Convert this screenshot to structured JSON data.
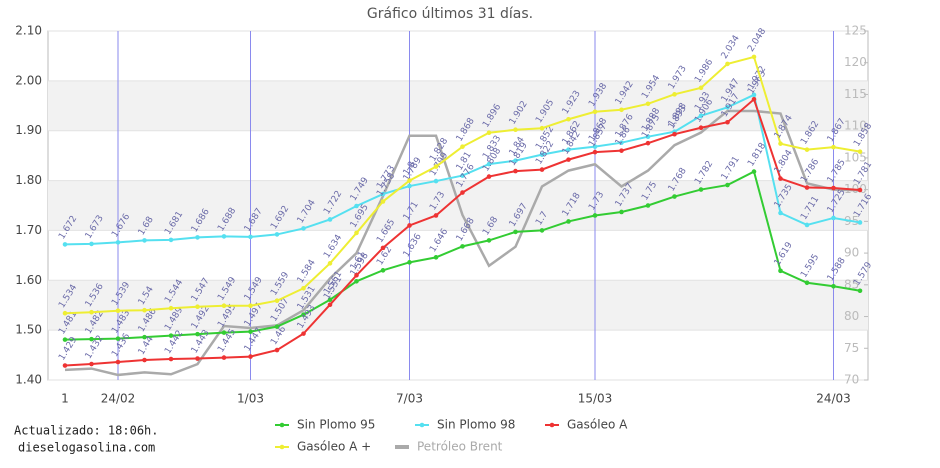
{
  "chart_data": {
    "type": "line",
    "title": "Gráfico últimos 31 días.",
    "footnote": [
      "Actualizado: 18:06h.",
      "dieselogasolina.com"
    ],
    "categories": [
      "1",
      null,
      "24/02",
      null,
      null,
      null,
      null,
      "1/03",
      null,
      null,
      null,
      null,
      null,
      "7/03",
      null,
      null,
      null,
      null,
      null,
      null,
      "15/03",
      null,
      null,
      null,
      null,
      null,
      null,
      null,
      null,
      "24/03",
      null
    ],
    "ylim": [
      1.4,
      2.1
    ],
    "yticks": [
      {
        "value": 1.4,
        "label": "1.40"
      },
      {
        "value": 1.5,
        "label": "1.50"
      },
      {
        "value": 1.6,
        "label": "1.60"
      },
      {
        "value": 1.7,
        "label": "1.70"
      },
      {
        "value": 1.8,
        "label": "1.80"
      },
      {
        "value": 1.9,
        "label": "1.90"
      },
      {
        "value": 2.0,
        "label": "2.00"
      },
      {
        "value": 2.1,
        "label": "2.10"
      }
    ],
    "y2lim": [
      70,
      125
    ],
    "y2ticks": [
      70,
      75,
      80,
      85,
      90,
      95,
      100,
      105,
      110,
      115,
      120,
      125
    ],
    "grid": true,
    "series": [
      {
        "name": "Sin Plomo 95",
        "color": "#33cc33",
        "values": [
          1.481,
          1.482,
          1.483,
          1.486,
          1.489,
          1.492,
          1.495,
          1.497,
          1.507,
          1.531,
          1.561,
          1.598,
          1.62,
          1.636,
          1.646,
          1.668,
          1.68,
          1.697,
          1.7,
          1.718,
          1.73,
          1.737,
          1.75,
          1.768,
          1.782,
          1.791,
          1.818,
          1.619,
          1.595,
          1.588,
          1.579
        ]
      },
      {
        "name": "Sin Plomo 98",
        "color": "#55e0f0",
        "values": [
          1.672,
          1.673,
          1.676,
          1.68,
          1.681,
          1.686,
          1.688,
          1.687,
          1.692,
          1.704,
          1.722,
          1.749,
          1.773,
          1.789,
          1.799,
          1.81,
          1.833,
          1.84,
          1.852,
          1.862,
          1.868,
          1.876,
          1.888,
          1.898,
          1.93,
          1.947,
          1.972,
          1.735,
          1.711,
          1.725,
          1.716
        ]
      },
      {
        "name": "Gasóleo A",
        "color": "#ee3333",
        "values": [
          1.429,
          1.432,
          1.436,
          1.44,
          1.442,
          1.443,
          1.445,
          1.447,
          1.46,
          1.493,
          1.551,
          1.61,
          1.665,
          1.71,
          1.73,
          1.776,
          1.808,
          1.819,
          1.822,
          1.842,
          1.857,
          1.86,
          1.875,
          1.893,
          1.906,
          1.917,
          1.963,
          1.804,
          1.786,
          1.785,
          1.781
        ]
      },
      {
        "name": "Gasóleo A +",
        "color": "#eeee33",
        "values": [
          1.534,
          1.536,
          1.539,
          1.54,
          1.544,
          1.547,
          1.549,
          1.549,
          1.559,
          1.584,
          1.634,
          1.695,
          1.758,
          1.8,
          1.828,
          1.868,
          1.896,
          1.902,
          1.905,
          1.923,
          1.938,
          1.942,
          1.954,
          1.973,
          1.986,
          2.034,
          2.048,
          1.874,
          1.862,
          1.867,
          1.858
        ]
      },
      {
        "name": "Petróleo Brent",
        "color": "#aaaaaa",
        "axis": "y2",
        "values": [
          71.6,
          71.8,
          70.8,
          71.2,
          70.9,
          72.5,
          78.5,
          78.2,
          78.6,
          81,
          86,
          90,
          99,
          108.5,
          108.5,
          96,
          88,
          91,
          100.5,
          103,
          104,
          100.5,
          103,
          107,
          109,
          112.4,
          112.4,
          112,
          101,
          100,
          99.9
        ]
      }
    ]
  }
}
